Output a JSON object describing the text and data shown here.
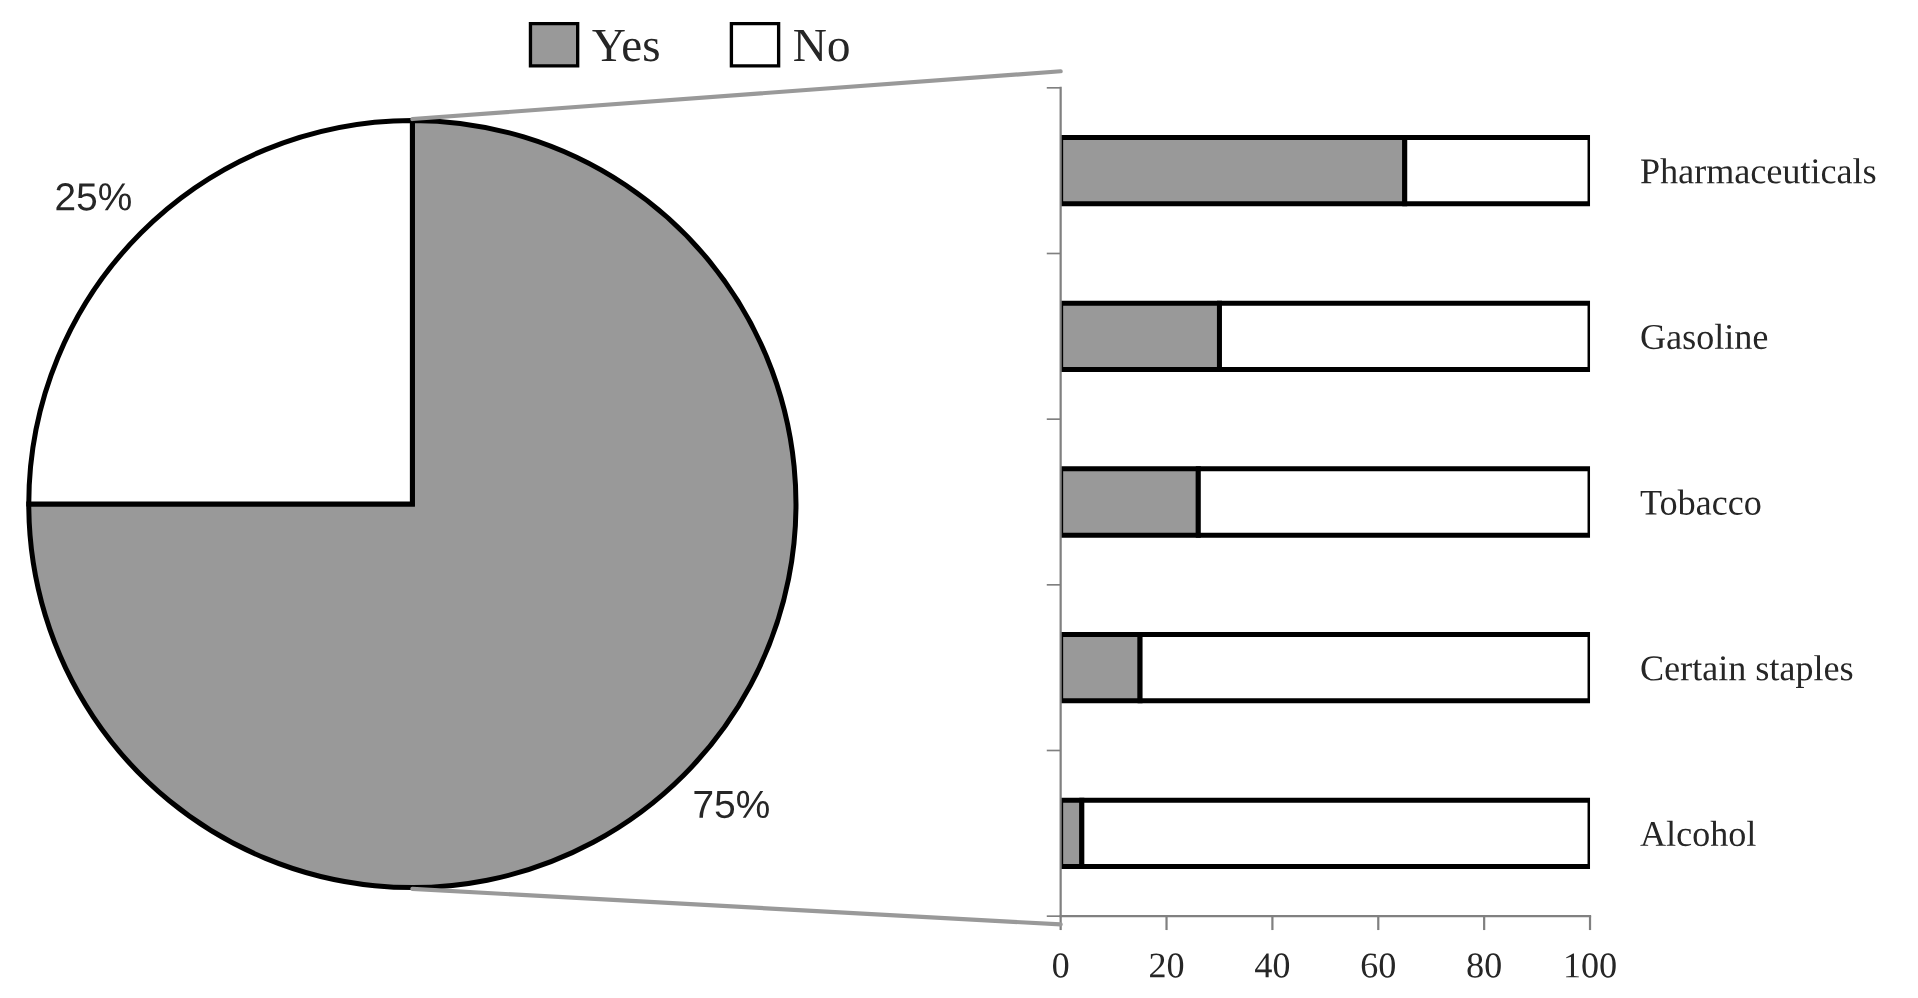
{
  "chart_data": [
    {
      "type": "pie",
      "categories": [
        "Yes",
        "No"
      ],
      "values": [
        75,
        25
      ],
      "colors": [
        "#999999",
        "#ffffff"
      ],
      "value_labels": [
        "75%",
        "25%"
      ],
      "legend": "top"
    },
    {
      "type": "bar",
      "orientation": "horizontal",
      "stacked": true,
      "categories": [
        "Pharmaceuticals",
        "Gasoline",
        "Tobacco",
        "Certain staples",
        "Alcohol"
      ],
      "series": [
        {
          "color": "#999999",
          "values": [
            65,
            30,
            26,
            15,
            4
          ]
        },
        {
          "color": "#ffffff",
          "values": [
            35,
            70,
            74,
            85,
            96
          ]
        }
      ],
      "xlim": [
        0,
        100
      ],
      "xticks": [
        0,
        20,
        40,
        60,
        80,
        100
      ],
      "grid": false
    }
  ]
}
